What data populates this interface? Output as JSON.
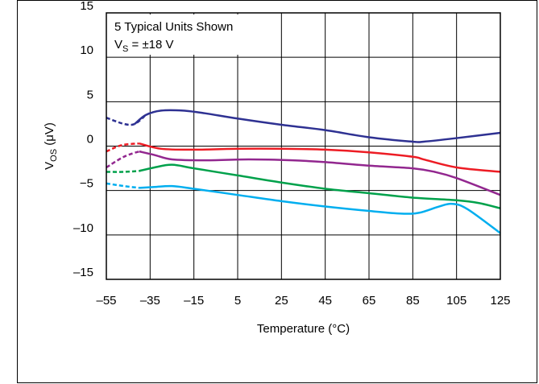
{
  "chart_data": {
    "type": "line",
    "annotation": "5 Typical Units Shown",
    "vs_label": {
      "symbol": "V",
      "sub": "S",
      "rest": " = ±18 V"
    },
    "ylabel": {
      "symbol": "V",
      "sub": "OS",
      "rest": " (μV)"
    },
    "xlabel": "Temperature (°C)",
    "xlim": [
      -55,
      125
    ],
    "ylim": [
      -15,
      15
    ],
    "x_ticks": [
      -55,
      -35,
      -15,
      5,
      25,
      45,
      65,
      85,
      105,
      125
    ],
    "x_tick_labels": [
      "–55",
      "–35",
      "–15",
      "5",
      "25",
      "45",
      "65",
      "85",
      "105",
      "125"
    ],
    "y_ticks": [
      -15,
      -10,
      -5,
      0,
      5,
      10,
      15
    ],
    "y_tick_labels": [
      "–15",
      "–10",
      "−5",
      "0",
      "5",
      "10",
      "15"
    ],
    "grid": true,
    "dashed_until_x": -40,
    "series": [
      {
        "color": "#2e3192",
        "points": [
          [
            -55,
            3.2
          ],
          [
            -47,
            2.5
          ],
          [
            -42,
            2.5
          ],
          [
            -37,
            3.5
          ],
          [
            -30,
            4.0
          ],
          [
            -20,
            4.0
          ],
          [
            -10,
            3.7
          ],
          [
            5,
            3.1
          ],
          [
            25,
            2.4
          ],
          [
            45,
            1.8
          ],
          [
            65,
            1.0
          ],
          [
            85,
            0.5
          ],
          [
            90,
            0.5
          ],
          [
            105,
            0.9
          ],
          [
            125,
            1.5
          ]
        ]
      },
      {
        "color": "#ed1c24",
        "points": [
          [
            -55,
            -0.6
          ],
          [
            -48,
            0.1
          ],
          [
            -40,
            0.3
          ],
          [
            -30,
            -0.3
          ],
          [
            -15,
            -0.4
          ],
          [
            5,
            -0.3
          ],
          [
            25,
            -0.3
          ],
          [
            45,
            -0.4
          ],
          [
            65,
            -0.7
          ],
          [
            85,
            -1.2
          ],
          [
            90,
            -1.5
          ],
          [
            105,
            -2.4
          ],
          [
            125,
            -2.9
          ]
        ]
      },
      {
        "color": "#92278f",
        "points": [
          [
            -55,
            -2.4
          ],
          [
            -47,
            -1.2
          ],
          [
            -40,
            -0.6
          ],
          [
            -33,
            -1.0
          ],
          [
            -25,
            -1.5
          ],
          [
            -10,
            -1.6
          ],
          [
            10,
            -1.5
          ],
          [
            30,
            -1.6
          ],
          [
            45,
            -1.8
          ],
          [
            65,
            -2.2
          ],
          [
            85,
            -2.5
          ],
          [
            95,
            -2.9
          ],
          [
            105,
            -3.6
          ],
          [
            125,
            -5.5
          ]
        ]
      },
      {
        "color": "#00a14b",
        "points": [
          [
            -55,
            -2.9
          ],
          [
            -47,
            -2.9
          ],
          [
            -40,
            -2.8
          ],
          [
            -33,
            -2.4
          ],
          [
            -25,
            -2.1
          ],
          [
            -15,
            -2.5
          ],
          [
            5,
            -3.3
          ],
          [
            25,
            -4.1
          ],
          [
            45,
            -4.8
          ],
          [
            65,
            -5.3
          ],
          [
            85,
            -5.8
          ],
          [
            105,
            -6.1
          ],
          [
            115,
            -6.4
          ],
          [
            125,
            -7.0
          ]
        ]
      },
      {
        "color": "#00aeef",
        "points": [
          [
            -55,
            -4.2
          ],
          [
            -47,
            -4.5
          ],
          [
            -40,
            -4.7
          ],
          [
            -33,
            -4.6
          ],
          [
            -25,
            -4.5
          ],
          [
            -15,
            -4.8
          ],
          [
            5,
            -5.5
          ],
          [
            25,
            -6.2
          ],
          [
            45,
            -6.8
          ],
          [
            65,
            -7.3
          ],
          [
            80,
            -7.6
          ],
          [
            88,
            -7.5
          ],
          [
            97,
            -6.8
          ],
          [
            103,
            -6.5
          ],
          [
            110,
            -7.1
          ],
          [
            125,
            -9.8
          ]
        ]
      }
    ]
  }
}
